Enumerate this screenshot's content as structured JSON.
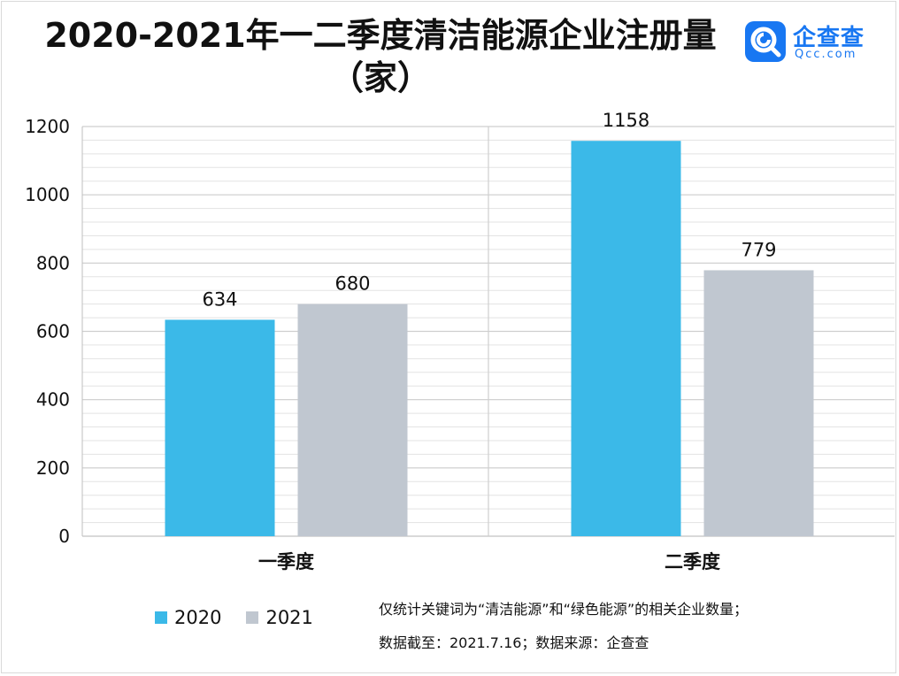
{
  "header": {
    "title_line1": "2020-2021年一二季度清洁能源企业注册量",
    "title_line2": "（家）"
  },
  "logo": {
    "name": "企查查",
    "domain": "Qcc.com",
    "icon": "magnifier-q-icon",
    "color": "#1877f2"
  },
  "footnote": {
    "line1": "仅统计关键词为“清洁能源”和“绿色能源”的相关企业数量；",
    "line2": "数据截至：2021.7.16；数据来源：企查查"
  },
  "chart_data": {
    "type": "bar",
    "categories": [
      "一季度",
      "二季度"
    ],
    "series": [
      {
        "name": "2020",
        "values": [
          634,
          1158
        ],
        "color": "#3bb9e8"
      },
      {
        "name": "2021",
        "values": [
          680,
          779
        ],
        "color": "#c0c7d0"
      }
    ],
    "yticks": [
      0,
      200,
      400,
      600,
      800,
      1000,
      1200
    ],
    "ylim": [
      0,
      1200
    ],
    "grid": true,
    "legend_position": "bottom-left"
  }
}
